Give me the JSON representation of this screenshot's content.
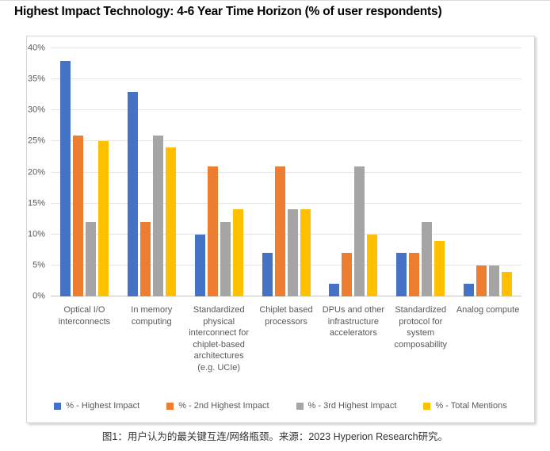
{
  "page": {
    "title": "Highest Impact Technology: 4-6 Year Time Horizon (% of user respondents)",
    "caption": "图1：用户认为的最关键互连/网络瓶颈。来源：2023 Hyperion Research研究。"
  },
  "colors": {
    "series_blue": "#4472C4",
    "series_orange": "#ED7D31",
    "series_gray": "#A5A5A5",
    "series_yellow": "#FFC000",
    "gridline": "#E4E4E4",
    "axis_line": "#C6C6C6",
    "axis_text": "#595959"
  },
  "chart_data": {
    "type": "bar",
    "title": "Highest Impact Technology: 4-6 Year Time Horizon (% of user respondents)",
    "categories": [
      "Optical I/O interconnects",
      "In memory computing",
      "Standardized physical interconnect for chiplet-based architectures (e.g. UCIe)",
      "Chiplet based processors",
      "DPUs and other infrastructure accelerators",
      "Standardized protocol for system composability",
      "Analog compute"
    ],
    "series": [
      {
        "name": "% - Highest Impact",
        "color": "#4472C4",
        "values": [
          38,
          33,
          10,
          7,
          2,
          7,
          2
        ]
      },
      {
        "name": "% - 2nd Highest Impact",
        "color": "#ED7D31",
        "values": [
          26,
          12,
          21,
          21,
          7,
          7,
          5
        ]
      },
      {
        "name": "% - 3rd Highest Impact",
        "color": "#A5A5A5",
        "values": [
          12,
          26,
          12,
          14,
          21,
          12,
          5
        ]
      },
      {
        "name": "% - Total Mentions",
        "color": "#FFC000",
        "values": [
          25,
          24,
          14,
          14,
          10,
          9,
          4
        ]
      }
    ],
    "xlabel": "",
    "ylabel": "",
    "ylim": [
      0,
      40
    ],
    "ytick_step": 5,
    "ytick_labels": [
      "0%",
      "5%",
      "10%",
      "15%",
      "20%",
      "25%",
      "30%",
      "35%",
      "40%"
    ],
    "grid": true,
    "legend_position": "bottom"
  }
}
